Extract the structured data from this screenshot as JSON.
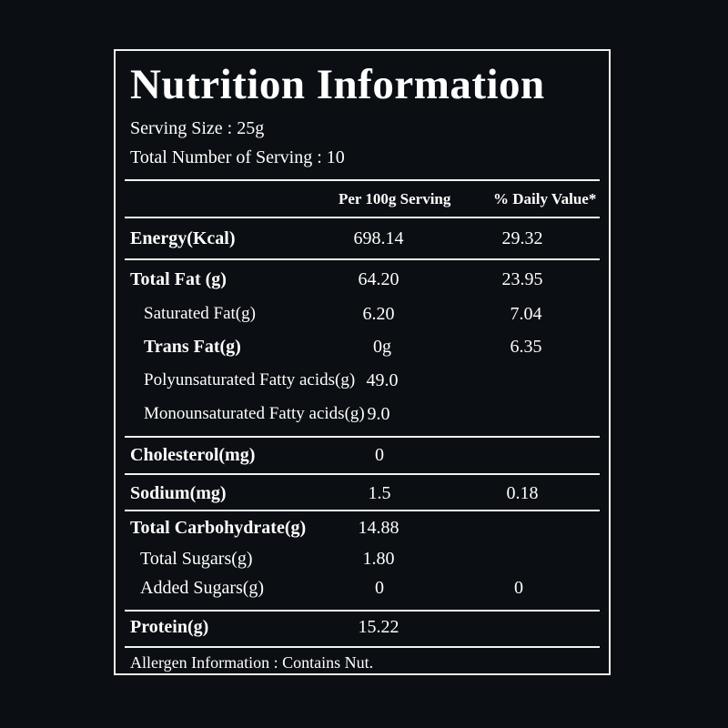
{
  "title": "Nutrition Information",
  "serving_size": "Serving Size : 25g",
  "servings_total": "Total Number of Serving : 10",
  "headers": {
    "per_100g": "Per 100g Serving",
    "daily_value": "% Daily Value*"
  },
  "rows": [
    {
      "label": "Energy(Kcal)",
      "value": "698.14",
      "dv": "29.32"
    },
    {
      "label": "Total Fat (g)",
      "value": "64.20",
      "dv": "23.95"
    },
    {
      "label": "Saturated Fat(g)",
      "value": "6.20",
      "dv": "7.04"
    },
    {
      "label": "Trans Fat(g)",
      "value": "0g",
      "dv": "6.35"
    },
    {
      "label": "Polyunsaturated Fatty acids(g)",
      "value": "49.0",
      "dv": ""
    },
    {
      "label": "Monounsaturated Fatty acids(g)",
      "value": "9.0",
      "dv": ""
    },
    {
      "label": "Cholesterol(mg)",
      "value": "0",
      "dv": ""
    },
    {
      "label": "Sodium(mg)",
      "value": "1.5",
      "dv": "0.18"
    },
    {
      "label": "Total Carbohydrate(g)",
      "value": "14.88",
      "dv": ""
    },
    {
      "label": "Total Sugars(g)",
      "value": "1.80",
      "dv": ""
    },
    {
      "label": "Added Sugars(g)",
      "value": "0",
      "dv": "0"
    },
    {
      "label": "Protein(g)",
      "value": "15.22",
      "dv": ""
    }
  ],
  "allergen": "Allergen Information : Contains Nut."
}
